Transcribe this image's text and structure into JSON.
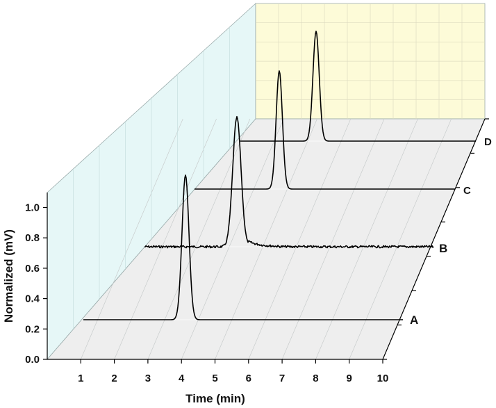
{
  "chart_data": {
    "type": "line",
    "style": "3D waterfall / stacked chromatograms",
    "xlabel": "Time (min)",
    "ylabel": "Normalized (mV)",
    "x_ticks": [
      1,
      2,
      3,
      4,
      5,
      6,
      7,
      8,
      9,
      10
    ],
    "y_ticks": [
      "0.0",
      "0.2",
      "0.4",
      "0.6",
      "0.8",
      "1.0"
    ],
    "xlim": [
      0,
      10
    ],
    "ylim": [
      0,
      1.1
    ],
    "grid": true,
    "colors": {
      "line": "#000000",
      "side_wall": "#e6f7f7",
      "back_wall": "#fdfbd8",
      "floor": "#eeeeee",
      "grid": "#c8cccc"
    },
    "series": [
      {
        "name": "A",
        "peak_time": 3.45,
        "peak_height": 0.96,
        "baseline": 0.0,
        "width": 0.09,
        "tailing": 0.006,
        "noise": 0
      },
      {
        "name": "B",
        "peak_time": 4.0,
        "peak_height": 0.85,
        "baseline": 0.0,
        "width": 0.14,
        "tailing": 0.05,
        "noise": 0.008
      },
      {
        "name": "C",
        "peak_time": 4.0,
        "peak_height": 0.78,
        "baseline": 0.0,
        "width": 0.1,
        "tailing": 0.0,
        "noise": 0
      },
      {
        "name": "D",
        "peak_time": 3.2,
        "peak_height": 0.72,
        "baseline": 0.0,
        "width": 0.1,
        "tailing": 0.0,
        "noise": 0
      }
    ]
  }
}
